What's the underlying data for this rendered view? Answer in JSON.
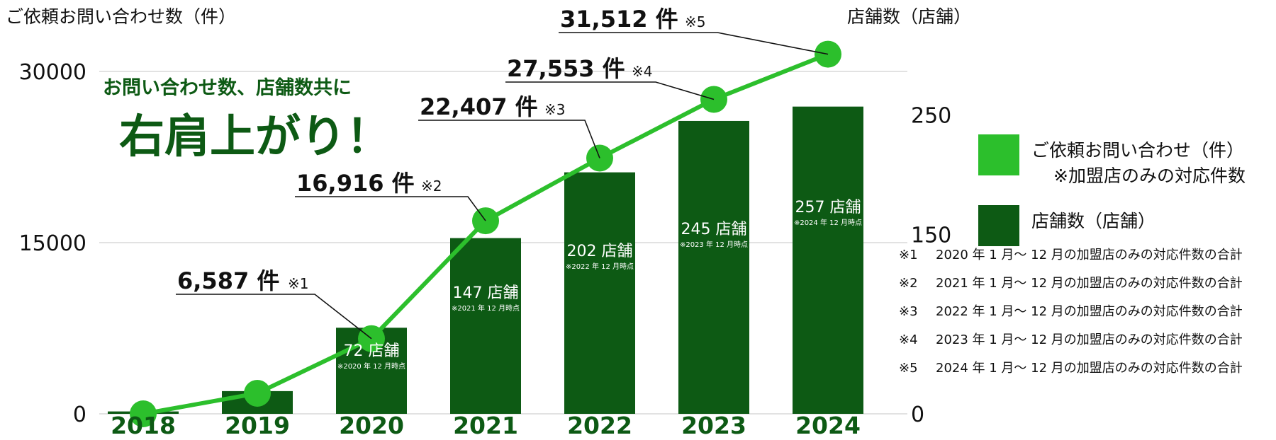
{
  "chart_data": {
    "type": "bar+line",
    "left_axis_label": "ご依頼お問い合わせ数（件）",
    "right_axis_label": "店舗数（店舗）",
    "left_ticks": [
      "0",
      "15000",
      "30000"
    ],
    "right_ticks": [
      "0",
      "150",
      "250"
    ],
    "ylim_left": [
      0,
      30000
    ],
    "ylim_right": [
      0,
      300
    ],
    "categories": [
      "2018",
      "2019",
      "2020",
      "2021",
      "2022",
      "2023",
      "2024"
    ],
    "series": [
      {
        "name": "店舗数（店舗）",
        "kind": "bar",
        "axis": "right",
        "values": [
          2,
          19,
          72,
          147,
          202,
          245,
          257
        ]
      },
      {
        "name": "ご依頼お問い合わせ（件）",
        "kind": "line",
        "axis": "left",
        "values": [
          0,
          1800,
          6587,
          16916,
          22407,
          27553,
          31512
        ]
      }
    ],
    "bar_labels": [
      null,
      null,
      {
        "value": "72 店舗",
        "note": "※2020 年 12 月時点"
      },
      {
        "value": "147 店舗",
        "note": "※2021 年 12 月時点"
      },
      {
        "value": "202 店舗",
        "note": "※2022 年 12 月時点"
      },
      {
        "value": "245 店舗",
        "note": "※2023 年 12 月時点"
      },
      {
        "value": "257 店舗",
        "note": "※2024 年 12 月時点"
      }
    ],
    "callouts": [
      {
        "index": 2,
        "text": "6,587 件",
        "mark": "※1"
      },
      {
        "index": 3,
        "text": "16,916 件",
        "mark": "※2"
      },
      {
        "index": 4,
        "text": "22,407 件",
        "mark": "※3"
      },
      {
        "index": 5,
        "text": "27,553 件",
        "mark": "※4"
      },
      {
        "index": 6,
        "text": "31,512 件",
        "mark": "※5"
      }
    ],
    "headline": {
      "line1": "お問い合わせ数、店舗数共に",
      "line2": "右肩上がり！"
    },
    "legend": {
      "placement": "right",
      "items": [
        {
          "series": "line",
          "label": "ご依頼お問い合わせ（件）",
          "sub": "※加盟店のみの対応件数"
        },
        {
          "series": "bar",
          "label": "店舗数（店舗）",
          "sub": ""
        }
      ]
    },
    "footnotes": [
      {
        "mark": "※1",
        "text": "2020 年 1 月～ 12 月の加盟店のみの対応件数の合計"
      },
      {
        "mark": "※2",
        "text": "2021 年 1 月～ 12 月の加盟店のみの対応件数の合計"
      },
      {
        "mark": "※3",
        "text": "2022 年 1 月～ 12 月の加盟店のみの対応件数の合計"
      },
      {
        "mark": "※4",
        "text": "2023 年 1 月～ 12 月の加盟店のみの対応件数の合計"
      },
      {
        "mark": "※5",
        "text": "2024 年 1 月～ 12 月の加盟店のみの対応件数の合計"
      }
    ],
    "colors": {
      "bar": "#0d5a14",
      "line": "#2cbf2c",
      "headline": "#0d5a14",
      "category_label": "#0d5a14",
      "grid": "#d8d8d8",
      "text": "#111111"
    },
    "grid": true
  }
}
